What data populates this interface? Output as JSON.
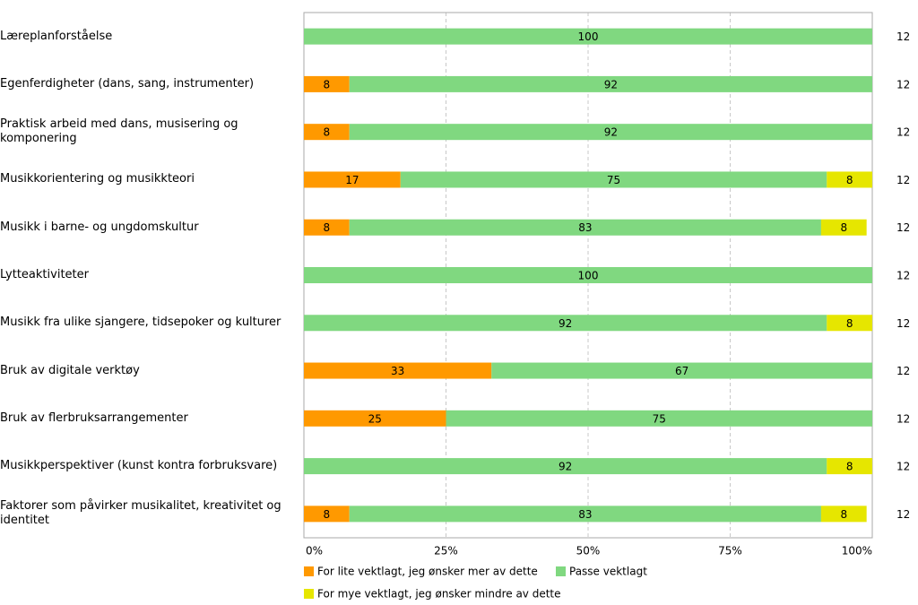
{
  "chart_data": {
    "type": "stacked-bar-horizontal",
    "categories": [
      "Læreplanforståelse",
      "Egenferdigheter (dans, sang, instrumenter)",
      "Praktisk arbeid med dans, musisering og komponering",
      "Musikkorientering og musikkteori",
      "Musikk i barne- og ungdomskultur",
      "Lytteaktiviteter",
      "Musikk fra ulike sjangere, tidsepoker og kulturer",
      "Bruk av digitale verktøy",
      "Bruk av flerbruksarrangementer",
      "Musikkperspektiver (kunst kontra forbruksvare)",
      "Faktorer som påvirker musikalitet, kreativitet og identitet"
    ],
    "series": [
      {
        "name": "For lite vektlagt, jeg ønsker mer av dette",
        "color": "#ff9900",
        "values": [
          null,
          8,
          8,
          17,
          8,
          null,
          null,
          33,
          25,
          null,
          8
        ]
      },
      {
        "name": "Passe vektlagt",
        "color": "#80d880",
        "values": [
          100,
          92,
          92,
          75,
          83,
          100,
          92,
          67,
          75,
          92,
          83
        ]
      },
      {
        "name": "For mye vektlagt, jeg ønsker mindre av dette",
        "color": "#e6e600",
        "values": [
          null,
          null,
          null,
          8,
          8,
          null,
          8,
          null,
          null,
          8,
          8
        ]
      }
    ],
    "counts": [
      12,
      12,
      12,
      12,
      12,
      12,
      12,
      12,
      12,
      12,
      12
    ],
    "xlim": [
      0,
      100
    ],
    "xticks": [
      {
        "value": 0,
        "label": "0%"
      },
      {
        "value": 25,
        "label": "25%"
      },
      {
        "value": 50,
        "label": "50%"
      },
      {
        "value": 75,
        "label": "75%"
      },
      {
        "value": 100,
        "label": "100%"
      }
    ],
    "grid": true
  }
}
